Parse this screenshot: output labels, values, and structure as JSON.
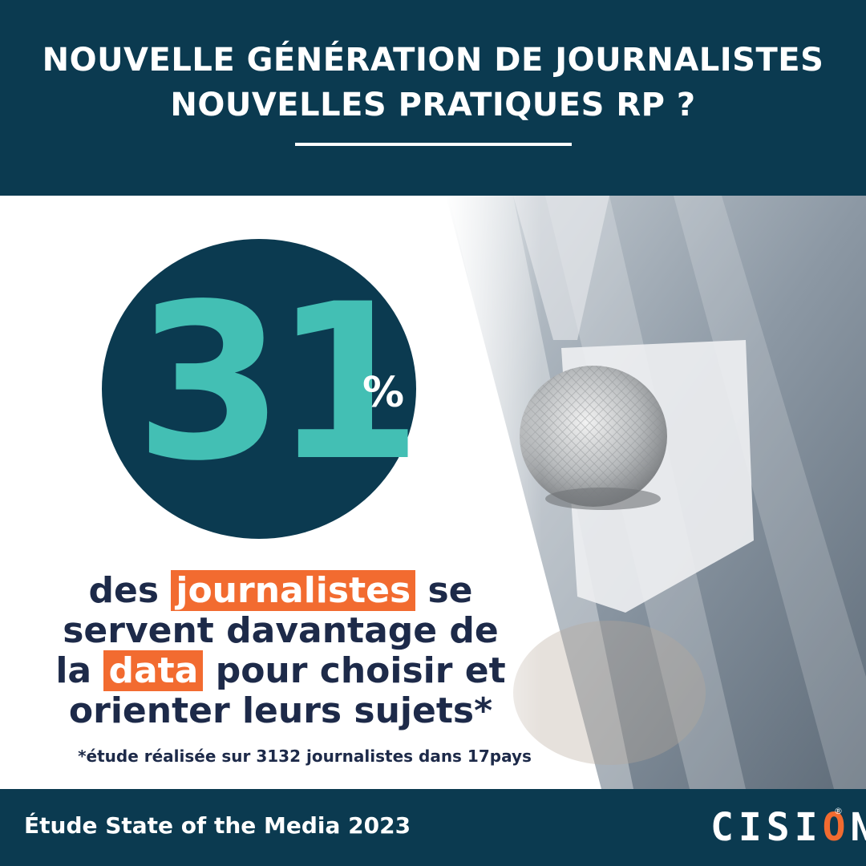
{
  "header": {
    "title_line1": "NOUVELLE GÉNÉRATION DE JOURNALISTES",
    "title_line2": "NOUVELLES PRATIQUES RP ?"
  },
  "stat": {
    "value": "31",
    "unit": "%",
    "statement_line1_a": "des",
    "statement_line1_highlight": "journalistes",
    "statement_line1_b": "se",
    "statement_line2": "servent davantage de",
    "statement_line3_a": "la",
    "statement_line3_highlight": "data",
    "statement_line3_b": "pour choisir et",
    "statement_line4": "orienter leurs sujets*",
    "footnote": "*étude réalisée sur 3132 journalistes dans 17pays"
  },
  "footer": {
    "title": "Étude State of the Media 2023",
    "logo_text_before": "CISI",
    "logo_text_o": "O",
    "logo_text_after": "N",
    "logo_reg": "®"
  },
  "icons": {
    "photo": "microphone-interview-photo",
    "logo": "cision-logo"
  },
  "colors": {
    "navy": "#0b3a50",
    "teal": "#43bfb4",
    "orange": "#f26b30",
    "text_dark": "#1d2a49"
  }
}
